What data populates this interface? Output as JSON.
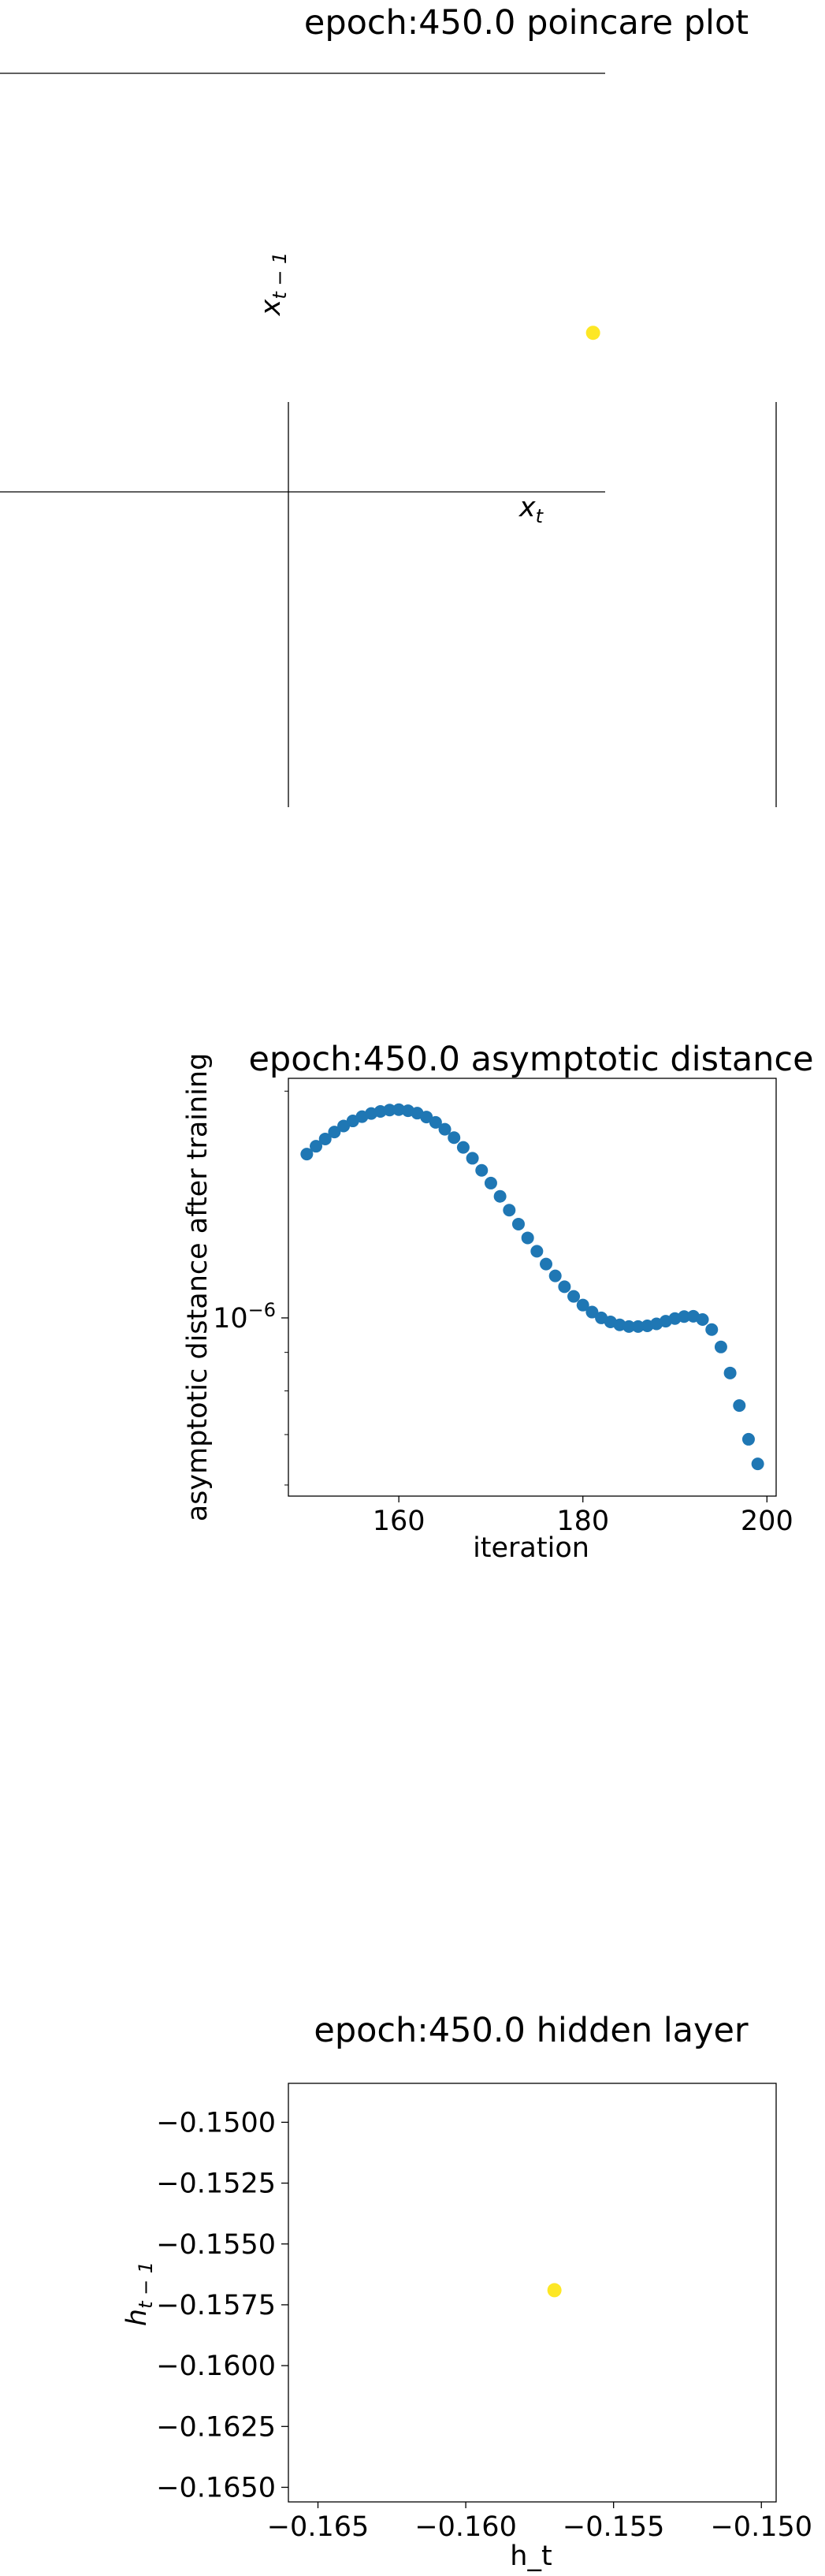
{
  "chart_data": [
    {
      "type": "scatter",
      "title": "epoch:450.0 poincare plot",
      "xlabel": "x_t",
      "ylabel": "x_{t-1}",
      "spines": "centered",
      "series": [
        {
          "color": "#fde725",
          "points": [
            [
              0.98,
              0.38
            ]
          ]
        }
      ],
      "grid": false
    },
    {
      "type": "scatter",
      "title": "epoch:450.0 asymptotic distance",
      "xlabel": "iteration",
      "ylabel": "asymptotic distance after training",
      "yscale": "log",
      "xlim": [
        148,
        201
      ],
      "ylim": [
        5.8e-07,
        2.08e-06
      ],
      "xticks": [
        160,
        180,
        200
      ],
      "xtick_labels": [
        "160",
        "180",
        "200"
      ],
      "yticks": [
        1e-06
      ],
      "ytick_labels": [
        "10^{-6}"
      ],
      "series": [
        {
          "color": "#1f77b4",
          "x": [
            150,
            151,
            152,
            153,
            154,
            155,
            156,
            157,
            158,
            159,
            160,
            161,
            162,
            163,
            164,
            165,
            166,
            167,
            168,
            169,
            170,
            171,
            172,
            173,
            174,
            175,
            176,
            177,
            178,
            179,
            180,
            181,
            182,
            183,
            184,
            185,
            186,
            187,
            188,
            189,
            190,
            191,
            192,
            193,
            194,
            195,
            196,
            197,
            198,
            199
          ],
          "y": [
            1.65e-06,
            1.69e-06,
            1.728e-06,
            1.765e-06,
            1.798e-06,
            1.826e-06,
            1.85e-06,
            1.868e-06,
            1.88e-06,
            1.888e-06,
            1.89e-06,
            1.884e-06,
            1.87e-06,
            1.848e-06,
            1.818e-06,
            1.78e-06,
            1.735e-06,
            1.684e-06,
            1.629e-06,
            1.57e-06,
            1.51e-06,
            1.45e-06,
            1.39e-06,
            1.332e-06,
            1.277e-06,
            1.226e-06,
            1.179e-06,
            1.137e-06,
            1.1e-06,
            1.068e-06,
            1.04e-06,
            1.018e-06,
            1e-06,
            9.88e-07,
            9.79e-07,
            9.74e-07,
            9.74e-07,
            9.76e-07,
            9.82e-07,
            9.9e-07,
            9.98e-07,
            1.004e-06,
            1.005e-06,
            9.95e-07,
            9.65e-07,
            9.15e-07,
            8.45e-07,
            7.65e-07,
            6.9e-07,
            6.4e-07
          ]
        }
      ],
      "grid": false
    },
    {
      "type": "scatter",
      "title": "epoch:450.0 hidden layer",
      "xlabel": "h_t",
      "ylabel": "h_{t-1}",
      "xlim": [
        -0.166,
        -0.1495
      ],
      "ylim": [
        -0.1656,
        -0.1484
      ],
      "xticks": [
        -0.165,
        -0.16,
        -0.155,
        -0.15
      ],
      "xtick_labels": [
        "−0.165",
        "−0.160",
        "−0.155",
        "−0.150"
      ],
      "yticks": [
        -0.15,
        -0.1525,
        -0.155,
        -0.1575,
        -0.16,
        -0.1625,
        -0.165
      ],
      "ytick_labels": [
        "−0.1500",
        "−0.1525",
        "−0.1550",
        "−0.1575",
        "−0.1600",
        "−0.1625",
        "−0.1650"
      ],
      "series": [
        {
          "color": "#fde725",
          "points": [
            [
              -0.157,
              -0.1569
            ]
          ]
        }
      ],
      "grid": false
    }
  ]
}
